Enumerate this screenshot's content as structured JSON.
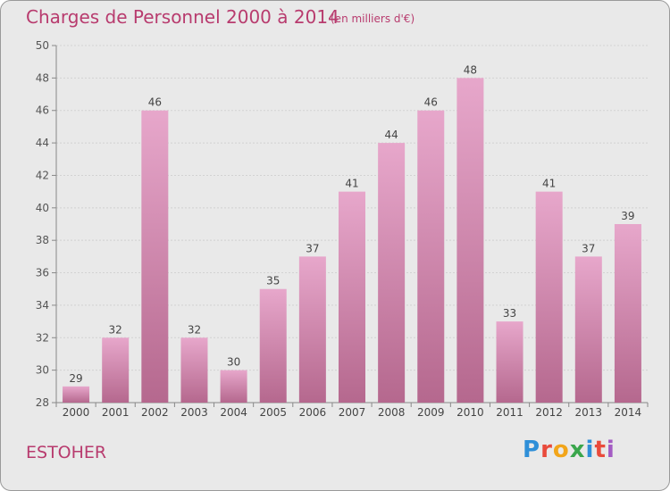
{
  "title": "Charges de Personnel 2000 à 2014",
  "subtitle": "(en milliers d'€)",
  "commune": "ESTOHER",
  "brand": "Proxiti",
  "colors": {
    "bar_light": "#e7a7cb",
    "bar_dark": "#b5688e",
    "text_accent": "#b83b6e"
  },
  "chart_data": {
    "type": "bar",
    "categories": [
      "2000",
      "2001",
      "2002",
      "2003",
      "2004",
      "2005",
      "2006",
      "2007",
      "2008",
      "2009",
      "2010",
      "2011",
      "2012",
      "2013",
      "2014"
    ],
    "values": [
      29,
      32,
      46,
      32,
      30,
      35,
      37,
      41,
      44,
      46,
      48,
      33,
      41,
      37,
      39
    ],
    "ylim": [
      28,
      50
    ],
    "yticks": [
      28,
      30,
      32,
      34,
      36,
      38,
      40,
      42,
      44,
      46,
      48,
      50
    ],
    "grid": true,
    "xlabel": "",
    "ylabel": ""
  }
}
